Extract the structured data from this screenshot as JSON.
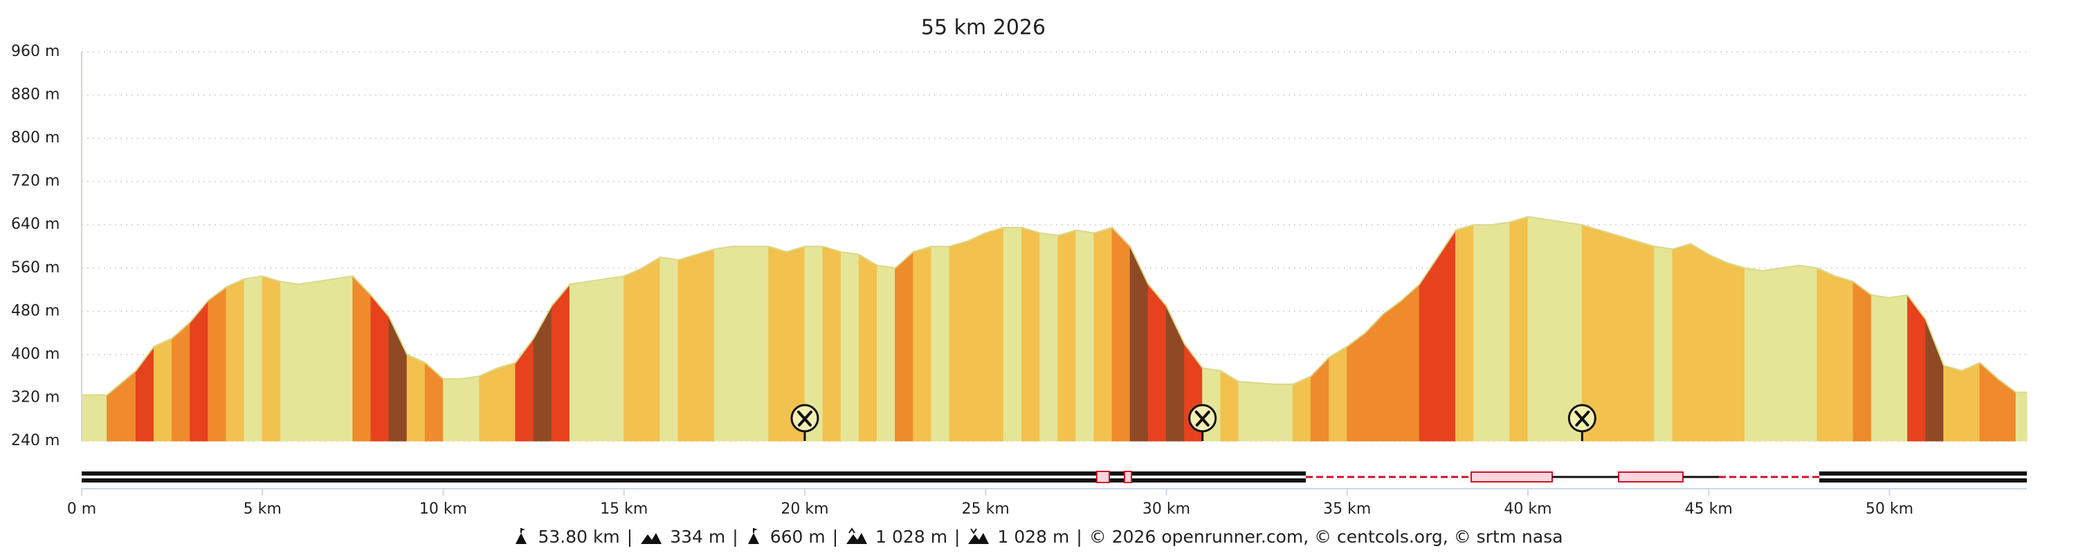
{
  "chart_data": {
    "type": "area",
    "title": "55 km 2026",
    "x": [
      0,
      0.7,
      1.5,
      2,
      2.5,
      3,
      3.5,
      4,
      4.5,
      5,
      5.5,
      6,
      6.5,
      7,
      7.5,
      8,
      8.5,
      9,
      9.5,
      10,
      10.5,
      11,
      11.5,
      12,
      12.5,
      13,
      13.5,
      14,
      14.5,
      15,
      15.5,
      16,
      16.5,
      17,
      17.5,
      18,
      19,
      19.5,
      20,
      20.5,
      21,
      21.5,
      22,
      22.5,
      23,
      23.5,
      24,
      24.5,
      25,
      25.5,
      26,
      26.5,
      27,
      27.5,
      28,
      28.5,
      29,
      29.5,
      30,
      30.5,
      31,
      31.5,
      32,
      33,
      33.5,
      34,
      34.5,
      35,
      35.5,
      36,
      36.5,
      37,
      37.5,
      38,
      38.5,
      39,
      39.5,
      40,
      40.5,
      41,
      41.5,
      42,
      42.5,
      43,
      43.5,
      44,
      44.5,
      45,
      45.5,
      46,
      46.5,
      47,
      47.5,
      48,
      48.5,
      49,
      49.5,
      50,
      50.5,
      51,
      51.5,
      52,
      52.5,
      53,
      53.5,
      53.8
    ],
    "values": [
      325,
      325,
      370,
      415,
      430,
      460,
      500,
      525,
      540,
      545,
      535,
      530,
      535,
      540,
      545,
      510,
      470,
      400,
      385,
      355,
      355,
      360,
      375,
      385,
      430,
      490,
      530,
      535,
      540,
      545,
      560,
      580,
      575,
      585,
      595,
      600,
      600,
      590,
      600,
      600,
      590,
      585,
      565,
      560,
      590,
      600,
      600,
      610,
      625,
      635,
      635,
      625,
      620,
      630,
      625,
      635,
      600,
      530,
      490,
      420,
      375,
      370,
      350,
      345,
      345,
      360,
      395,
      415,
      440,
      475,
      500,
      530,
      580,
      630,
      640,
      640,
      645,
      655,
      650,
      645,
      640,
      630,
      620,
      610,
      600,
      595,
      605,
      585,
      570,
      560,
      555,
      560,
      565,
      560,
      545,
      535,
      510,
      505,
      510,
      465,
      380,
      370,
      385,
      355,
      330,
      330
    ],
    "color": "#e5e597",
    "xlim": [
      0,
      53.8
    ],
    "ylim": [
      240,
      960
    ],
    "xticks": [
      {
        "value": 0,
        "label": "0 m"
      },
      {
        "value": 5,
        "label": "5 km"
      },
      {
        "value": 10,
        "label": "10 km"
      },
      {
        "value": 15,
        "label": "15 km"
      },
      {
        "value": 20,
        "label": "20 km"
      },
      {
        "value": 25,
        "label": "25 km"
      },
      {
        "value": 30,
        "label": "30 km"
      },
      {
        "value": 35,
        "label": "35 km"
      },
      {
        "value": 40,
        "label": "40 km"
      },
      {
        "value": 45,
        "label": "45 km"
      },
      {
        "value": 50,
        "label": "50 km"
      }
    ],
    "yticks": [
      {
        "value": 240,
        "label": "240 m"
      },
      {
        "value": 320,
        "label": "320 m"
      },
      {
        "value": 400,
        "label": "400 m"
      },
      {
        "value": 480,
        "label": "480 m"
      },
      {
        "value": 560,
        "label": "560 m"
      },
      {
        "value": 640,
        "label": "640 m"
      },
      {
        "value": 720,
        "label": "720 m"
      },
      {
        "value": 800,
        "label": "800 m"
      },
      {
        "value": 880,
        "label": "880 m"
      },
      {
        "value": 960,
        "label": "960 m"
      }
    ],
    "grid": true,
    "markers_x": [
      20,
      31,
      41.5
    ],
    "footer": {
      "distance": "53.80 km",
      "min": "334 m",
      "max": "660 m",
      "ascent": "1 028 m",
      "descent": "1 028 m",
      "credits": "© 2026 openrunner.com, © centcols.org, © srtm nasa"
    }
  }
}
